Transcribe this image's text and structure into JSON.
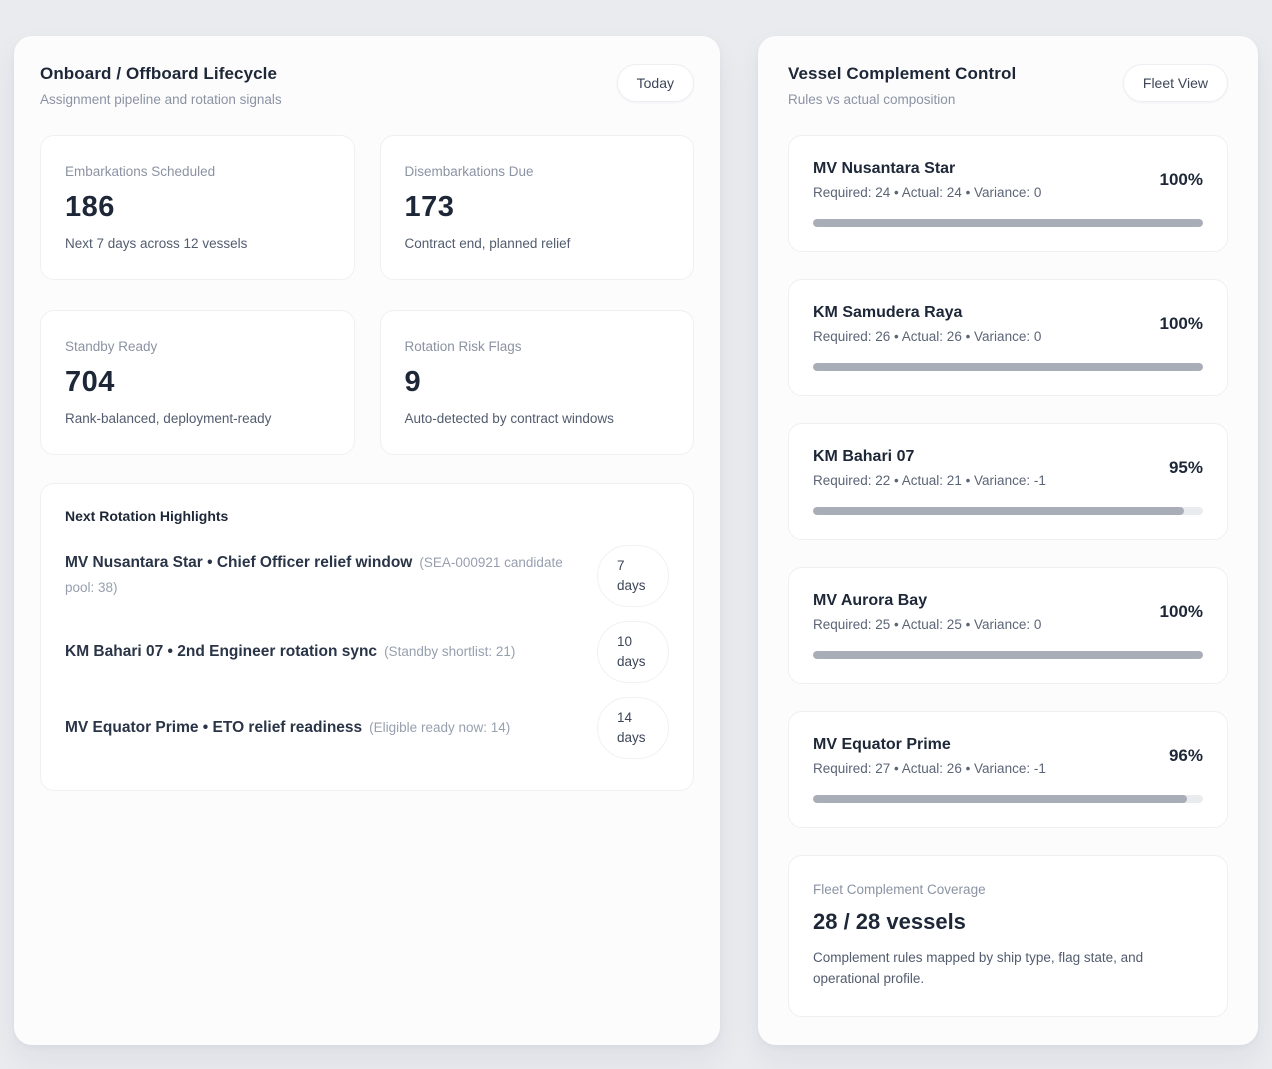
{
  "colors": {
    "page_background": "#e9ebef",
    "panel_background": "#fcfcfd",
    "card_background": "#ffffff",
    "primary_text": "#1d2737",
    "secondary_text": "#8b93a3",
    "progress_fill": "#a8adb7",
    "progress_track": "#e9ebef"
  },
  "left_panel": {
    "title": "Onboard / Offboard Lifecycle",
    "subtitle": "Assignment pipeline and rotation signals",
    "action_label": "Today",
    "stats": [
      {
        "label": "Embarkations Scheduled",
        "value": "186",
        "desc": "Next 7 days across 12 vessels"
      },
      {
        "label": "Disembarkations Due",
        "value": "173",
        "desc": "Contract end, planned relief"
      },
      {
        "label": "Standby Ready",
        "value": "704",
        "desc": "Rank-balanced, deployment-ready"
      },
      {
        "label": "Rotation Risk Flags",
        "value": "9",
        "desc": "Auto-detected by contract windows"
      }
    ],
    "highlights": {
      "title": "Next Rotation Highlights",
      "items": [
        {
          "main": "MV Nusantara Star • Chief Officer relief window",
          "note": "(SEA-000921 candidate pool: 38)",
          "days_value": "7",
          "days_unit": "days"
        },
        {
          "main": "KM Bahari 07 • 2nd Engineer rotation sync",
          "note": "(Standby shortlist: 21)",
          "days_value": "10",
          "days_unit": "days"
        },
        {
          "main": "MV Equator Prime • ETO relief readiness",
          "note": "(Eligible ready now: 14)",
          "days_value": "14",
          "days_unit": "days"
        }
      ]
    }
  },
  "right_panel": {
    "title": "Vessel Complement Control",
    "subtitle": "Rules vs actual composition",
    "action_label": "Fleet View",
    "vessels": [
      {
        "name": "MV Nusantara Star",
        "meta": "Required: 24 • Actual: 24 • Variance: 0",
        "percent": "100%",
        "bar_width": "100%"
      },
      {
        "name": "KM Samudera Raya",
        "meta": "Required: 26 • Actual: 26 • Variance: 0",
        "percent": "100%",
        "bar_width": "100%"
      },
      {
        "name": "KM Bahari 07",
        "meta": "Required: 22 • Actual: 21 • Variance: -1",
        "percent": "95%",
        "bar_width": "95%"
      },
      {
        "name": "MV Aurora Bay",
        "meta": "Required: 25 • Actual: 25 • Variance: 0",
        "percent": "100%",
        "bar_width": "100%"
      },
      {
        "name": "MV Equator Prime",
        "meta": "Required: 27 • Actual: 26 • Variance: -1",
        "percent": "96%",
        "bar_width": "96%"
      }
    ],
    "coverage": {
      "label": "Fleet Complement Coverage",
      "value": "28 / 28 vessels",
      "desc": "Complement rules mapped by ship type, flag state, and operational profile."
    }
  }
}
